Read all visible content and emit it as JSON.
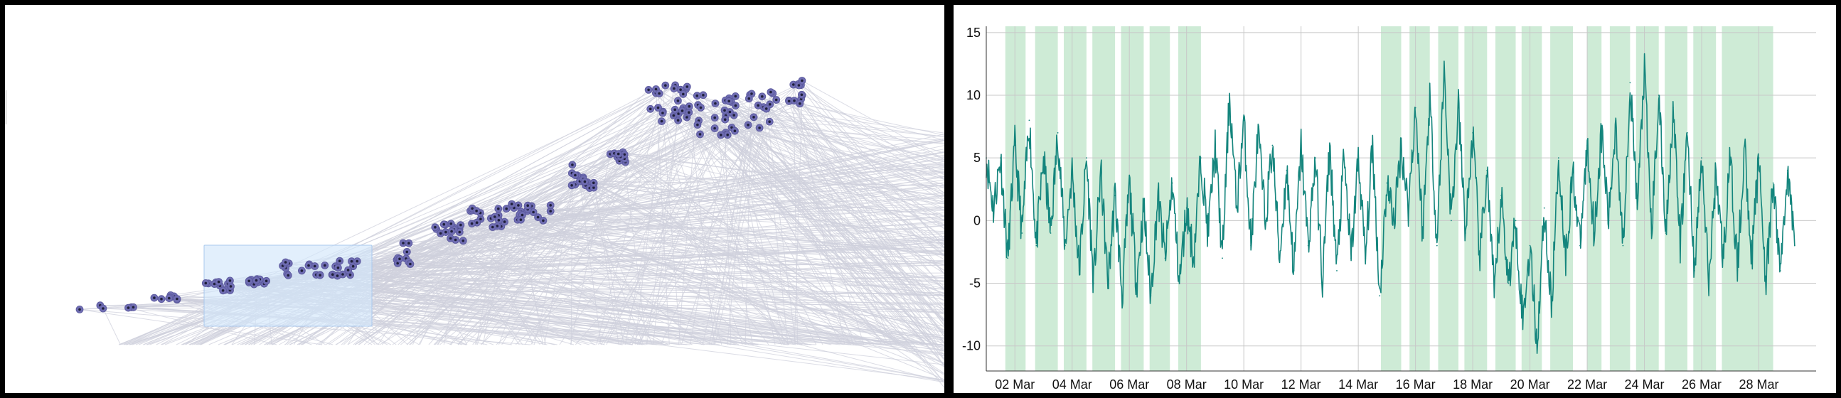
{
  "colors": {
    "frame": "#000000",
    "panel_bg": "#ffffff",
    "edge": "#cfd0dc",
    "node_fill": "#6f6db2",
    "node_core": "#1f1f3a",
    "brush_fill": "#d3e6fa",
    "brush_stroke": "#a9c8ee",
    "series_line": "#14857d",
    "band_fill": "#c5e8cf",
    "grid": "#c8c8c8",
    "axis": "#333333"
  },
  "network_view": {
    "description_kind": "node-link scatter with brush",
    "node_count_visible": 246
  },
  "chart_data": {
    "type": "line",
    "title": "",
    "xlabel": "",
    "ylabel": "",
    "x_domain": [
      "2024-03-01T00:00",
      "2024-03-30T00:00"
    ],
    "ylim": [
      -12,
      15.5
    ],
    "grid": true,
    "yticks": [
      15,
      10,
      5,
      0,
      -5,
      -10
    ],
    "ytick_labels": [
      "15",
      "10",
      "5",
      "0",
      "-5",
      "-10"
    ],
    "xticks": [
      "2024-03-02",
      "2024-03-04",
      "2024-03-06",
      "2024-03-08",
      "2024-03-10",
      "2024-03-12",
      "2024-03-14",
      "2024-03-16",
      "2024-03-18",
      "2024-03-20",
      "2024-03-22",
      "2024-03-24",
      "2024-03-26",
      "2024-03-28"
    ],
    "xtick_labels": [
      "02 Mar",
      "04 Mar",
      "06 Mar",
      "08 Mar",
      "10 Mar",
      "12 Mar",
      "14 Mar",
      "16 Mar",
      "18 Mar",
      "20 Mar",
      "22 Mar",
      "24 Mar",
      "26 Mar",
      "28 Mar"
    ],
    "highlight_bands": [
      [
        "2024-03-01T16:00",
        "2024-03-02T09:00"
      ],
      [
        "2024-03-02T17:00",
        "2024-03-03T12:00"
      ],
      [
        "2024-03-03T17:00",
        "2024-03-04T12:00"
      ],
      [
        "2024-03-04T17:00",
        "2024-03-05T12:00"
      ],
      [
        "2024-03-05T17:00",
        "2024-03-06T12:00"
      ],
      [
        "2024-03-06T17:00",
        "2024-03-07T10:00"
      ],
      [
        "2024-03-07T17:00",
        "2024-03-08T12:00"
      ],
      [
        "2024-03-14T19:00",
        "2024-03-15T12:00"
      ],
      [
        "2024-03-15T19:00",
        "2024-03-16T12:00"
      ],
      [
        "2024-03-16T19:00",
        "2024-03-17T12:00"
      ],
      [
        "2024-03-17T17:00",
        "2024-03-18T12:00"
      ],
      [
        "2024-03-18T19:00",
        "2024-03-19T12:00"
      ],
      [
        "2024-03-19T17:00",
        "2024-03-20T10:00"
      ],
      [
        "2024-03-20T17:00",
        "2024-03-21T12:00"
      ],
      [
        "2024-03-22T00:00",
        "2024-03-22T12:00"
      ],
      [
        "2024-03-22T19:00",
        "2024-03-23T12:00"
      ],
      [
        "2024-03-23T17:00",
        "2024-03-24T12:00"
      ],
      [
        "2024-03-24T17:00",
        "2024-03-25T12:00"
      ],
      [
        "2024-03-25T17:00",
        "2024-03-26T12:00"
      ],
      [
        "2024-03-26T17:00",
        "2024-03-28T12:00"
      ]
    ],
    "series": [
      {
        "name": "",
        "x": [
          "2024-03-01T00:00",
          "2024-03-01T06:00",
          "2024-03-01T12:00",
          "2024-03-01T18:00",
          "2024-03-02T00:00",
          "2024-03-02T06:00",
          "2024-03-02T12:00",
          "2024-03-02T18:00",
          "2024-03-03T00:00",
          "2024-03-03T06:00",
          "2024-03-03T12:00",
          "2024-03-03T18:00",
          "2024-03-04T00:00",
          "2024-03-04T06:00",
          "2024-03-04T12:00",
          "2024-03-04T18:00",
          "2024-03-05T00:00",
          "2024-03-05T06:00",
          "2024-03-05T12:00",
          "2024-03-05T18:00",
          "2024-03-06T00:00",
          "2024-03-06T06:00",
          "2024-03-06T12:00",
          "2024-03-06T18:00",
          "2024-03-07T00:00",
          "2024-03-07T06:00",
          "2024-03-07T12:00",
          "2024-03-07T18:00",
          "2024-03-08T00:00",
          "2024-03-08T06:00",
          "2024-03-08T12:00",
          "2024-03-08T18:00",
          "2024-03-09T00:00",
          "2024-03-09T06:00",
          "2024-03-09T12:00",
          "2024-03-09T18:00",
          "2024-03-10T00:00",
          "2024-03-10T06:00",
          "2024-03-10T12:00",
          "2024-03-10T18:00",
          "2024-03-11T00:00",
          "2024-03-11T06:00",
          "2024-03-11T12:00",
          "2024-03-11T18:00",
          "2024-03-12T00:00",
          "2024-03-12T06:00",
          "2024-03-12T12:00",
          "2024-03-12T18:00",
          "2024-03-13T00:00",
          "2024-03-13T06:00",
          "2024-03-13T12:00",
          "2024-03-13T18:00",
          "2024-03-14T00:00",
          "2024-03-14T06:00",
          "2024-03-14T12:00",
          "2024-03-14T18:00",
          "2024-03-15T00:00",
          "2024-03-15T06:00",
          "2024-03-15T12:00",
          "2024-03-15T18:00",
          "2024-03-16T00:00",
          "2024-03-16T06:00",
          "2024-03-16T12:00",
          "2024-03-16T18:00",
          "2024-03-17T00:00",
          "2024-03-17T06:00",
          "2024-03-17T12:00",
          "2024-03-17T18:00",
          "2024-03-18T00:00",
          "2024-03-18T06:00",
          "2024-03-18T12:00",
          "2024-03-18T18:00",
          "2024-03-19T00:00",
          "2024-03-19T06:00",
          "2024-03-19T12:00",
          "2024-03-19T18:00",
          "2024-03-20T00:00",
          "2024-03-20T06:00",
          "2024-03-20T12:00",
          "2024-03-20T18:00",
          "2024-03-21T00:00",
          "2024-03-21T06:00",
          "2024-03-21T12:00",
          "2024-03-21T18:00",
          "2024-03-22T00:00",
          "2024-03-22T06:00",
          "2024-03-22T12:00",
          "2024-03-22T18:00",
          "2024-03-23T00:00",
          "2024-03-23T06:00",
          "2024-03-23T12:00",
          "2024-03-23T18:00",
          "2024-03-24T00:00",
          "2024-03-24T06:00",
          "2024-03-24T12:00",
          "2024-03-24T18:00",
          "2024-03-25T00:00",
          "2024-03-25T06:00",
          "2024-03-25T12:00",
          "2024-03-25T18:00",
          "2024-03-26T00:00",
          "2024-03-26T06:00",
          "2024-03-26T12:00",
          "2024-03-26T18:00",
          "2024-03-27T00:00",
          "2024-03-27T06:00",
          "2024-03-27T12:00",
          "2024-03-27T18:00",
          "2024-03-28T00:00",
          "2024-03-28T06:00",
          "2024-03-28T12:00",
          "2024-03-28T18:00",
          "2024-03-29T00:00",
          "2024-03-29T06:00"
        ],
        "y": [
          5,
          1,
          5,
          -3,
          6,
          -1,
          8,
          -2,
          5,
          -1,
          7,
          -2,
          4,
          -4,
          5,
          -5,
          4,
          -5,
          2,
          -6,
          3,
          -5,
          1,
          -6,
          2,
          -3,
          3,
          -5,
          1,
          -3,
          5,
          -1,
          6,
          -3,
          10,
          1,
          8,
          -2,
          7,
          0,
          6,
          -3,
          4,
          -4,
          6,
          -2,
          5,
          -5,
          6,
          -4,
          5,
          -3,
          5,
          -3,
          6,
          -6,
          3,
          0,
          6,
          1,
          9,
          -1,
          10,
          -2,
          12,
          0,
          9,
          -1,
          7,
          -3,
          4,
          -6,
          2,
          -5,
          0,
          -8,
          -2,
          -10,
          1,
          -7,
          5,
          -3,
          4,
          -2,
          6,
          -1,
          7,
          0,
          8,
          -2,
          11,
          1,
          12,
          -1,
          10,
          -1,
          9,
          -2,
          7,
          -4,
          5,
          -5,
          4,
          -3,
          5,
          -4,
          6,
          -3,
          5,
          -5,
          3,
          -4,
          4,
          -2
        ]
      }
    ]
  }
}
